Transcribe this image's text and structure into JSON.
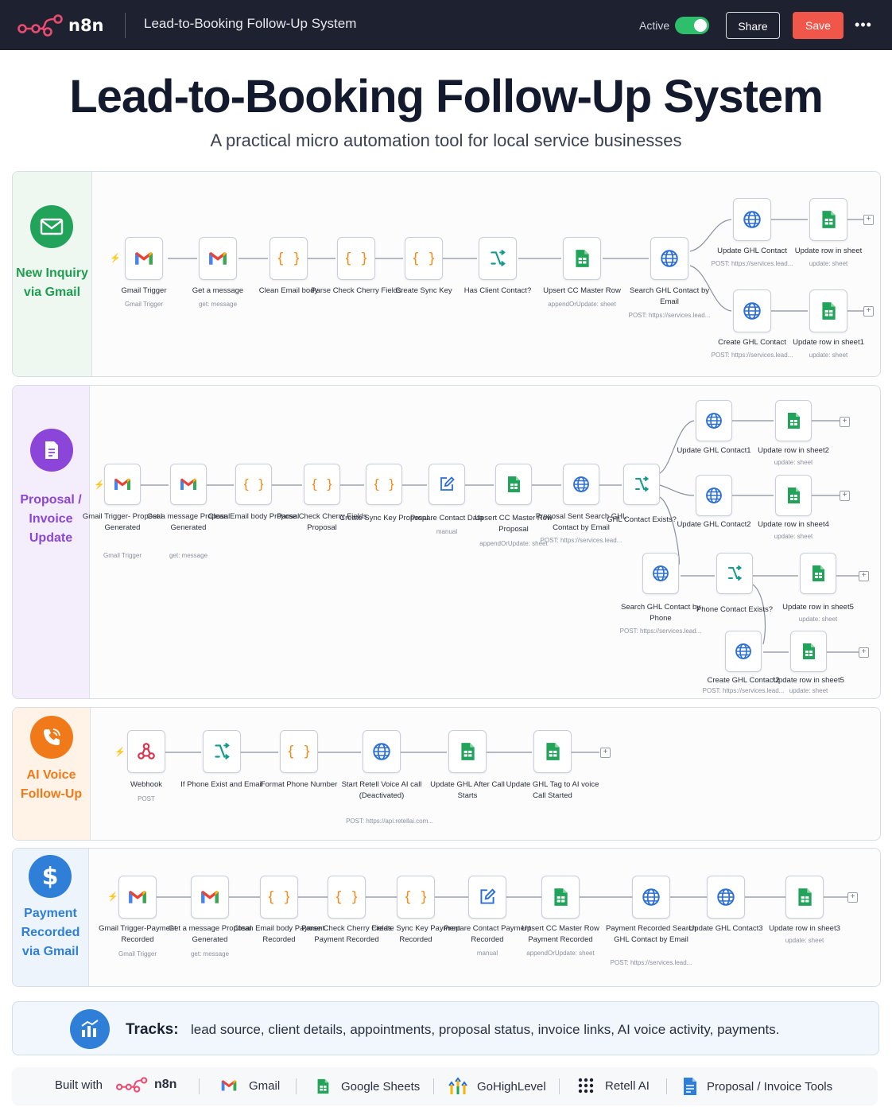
{
  "topbar": {
    "brand": "n8n",
    "workflow_name": "Lead-to-Booking Follow-Up System",
    "active_label": "Active",
    "active": true,
    "share_label": "Share",
    "save_label": "Save",
    "more_label": "•••"
  },
  "hero": {
    "title": "Lead-to-Booking Follow-Up System",
    "subtitle": "A practical micro automation tool for local service businesses"
  },
  "sections": {
    "inquiry": {
      "label": "New Inquiry via Gmail",
      "color": "#1f9d50",
      "nodes": {
        "n1": {
          "label": "Gmail Trigger",
          "sub": "Gmail Trigger"
        },
        "n2": {
          "label": "Get a message",
          "sub": "get: message"
        },
        "n3": {
          "label": "Clean Email body",
          "sub": ""
        },
        "n4": {
          "label": "Parse Check Cherry Fields",
          "sub": ""
        },
        "n5": {
          "label": "Create Sync Key",
          "sub": ""
        },
        "n6": {
          "label": "Has Client Contact?",
          "sub": ""
        },
        "n7": {
          "label": "Upsert CC Master Row",
          "sub": "appendOrUpdate: sheet"
        },
        "n8": {
          "label": "Search GHL Contact by Email",
          "sub": "POST: https://services.lead..."
        },
        "n9": {
          "label": "Update GHL Contact",
          "sub": "POST: https://services.lead..."
        },
        "n10": {
          "label": "Update row in sheet",
          "sub": "update: sheet"
        },
        "n11": {
          "label": "Create GHL Contact",
          "sub": "POST: https://services.lead..."
        },
        "n12": {
          "label": "Update row in sheet1",
          "sub": "update: sheet"
        }
      }
    },
    "proposal": {
      "label": "Proposal / Invoice Update",
      "color": "#8b45d9",
      "nodes": {
        "n1": {
          "label": "Gmail Trigger- Proposal Generated",
          "sub": "Gmail Trigger"
        },
        "n2": {
          "label": "Get a message Proposal Generated",
          "sub": "get: message"
        },
        "n3": {
          "label": "Clean Email body Proposal",
          "sub": ""
        },
        "n4": {
          "label": "Parse Check Cherry Fields Proposal",
          "sub": ""
        },
        "n5": {
          "label": "Create Sync Key Proposal",
          "sub": ""
        },
        "n6": {
          "label": "Prepare Contact Data",
          "sub": "manual"
        },
        "n7": {
          "label": "Upsert CC Master Row Proposal",
          "sub": "appendOrUpdate: sheet"
        },
        "n8": {
          "label": "Proposal Sent Search GHL Contact by Email",
          "sub": "POST: https://services.lead..."
        },
        "n9": {
          "label": "GHL Contact Exists?",
          "sub": ""
        },
        "n10": {
          "label": "Update GHL Contact1",
          "sub": ""
        },
        "n11": {
          "label": "Update row in sheet2",
          "sub": "update: sheet"
        },
        "n12": {
          "label": "Update GHL Contact2",
          "sub": ""
        },
        "n13": {
          "label": "Update row in sheet4",
          "sub": "update: sheet"
        },
        "n14": {
          "label": "Search GHL Contact by Phone",
          "sub": "POST: https://services.lead..."
        },
        "n15": {
          "label": "Phone Contact Exists?",
          "sub": ""
        },
        "n16": {
          "label": "Update row in sheet5",
          "sub": "update: sheet"
        },
        "n17": {
          "label": "Create GHL Contact2",
          "sub": "POST: https://services.lead..."
        },
        "n18": {
          "label": "Update row in sheet5",
          "sub": "update: sheet"
        }
      }
    },
    "voice": {
      "label": "AI Voice Follow-Up",
      "color": "#f07a1a",
      "nodes": {
        "n1": {
          "label": "Webhook",
          "sub": "POST"
        },
        "n2": {
          "label": "If Phone Exist and Email",
          "sub": ""
        },
        "n3": {
          "label": "Format Phone Number",
          "sub": ""
        },
        "n4": {
          "label": "Start Retell Voice AI call (Deactivated)",
          "sub": "POST: https://api.retellai.com..."
        },
        "n5": {
          "label": "Update GHL After Call Starts",
          "sub": ""
        },
        "n6": {
          "label": "Update GHL Tag to AI voice Call Started",
          "sub": ""
        }
      }
    },
    "payment": {
      "label": "Payment Recorded via Gmail",
      "color": "#2f7fd8",
      "nodes": {
        "n1": {
          "label": "Gmail Trigger-Payment Recorded",
          "sub": "Gmail Trigger"
        },
        "n2": {
          "label": "Get a message Proposal Generated",
          "sub": "get: message"
        },
        "n3": {
          "label": "Clean Email body Payment Recorded",
          "sub": ""
        },
        "n4": {
          "label": "Parse Check Cherry Fields Payment Recorded",
          "sub": ""
        },
        "n5": {
          "label": "Create Sync Key Payment Recorded",
          "sub": ""
        },
        "n6": {
          "label": "Prepare Contact Payment Recorded",
          "sub": "manual"
        },
        "n7": {
          "label": "Upsert CC Master Row Payment Recorded",
          "sub": "appendOrUpdate: sheet"
        },
        "n8": {
          "label": "Payment Recorded Search GHL Contact by Email",
          "sub": "POST: https://services.lead..."
        },
        "n9": {
          "label": "Update GHL Contact3",
          "sub": ""
        },
        "n10": {
          "label": "Update row in sheet3",
          "sub": "update: sheet"
        }
      }
    }
  },
  "tracks": {
    "label": "Tracks:",
    "text": "lead source, client details, appointments, proposal status, invoice links, AI voice activity, payments."
  },
  "footer": {
    "built_with": "Built with",
    "brand": "n8n",
    "items": [
      "Gmail",
      "Google Sheets",
      "GoHighLevel",
      "Retell AI",
      "Proposal / Invoice Tools"
    ]
  }
}
